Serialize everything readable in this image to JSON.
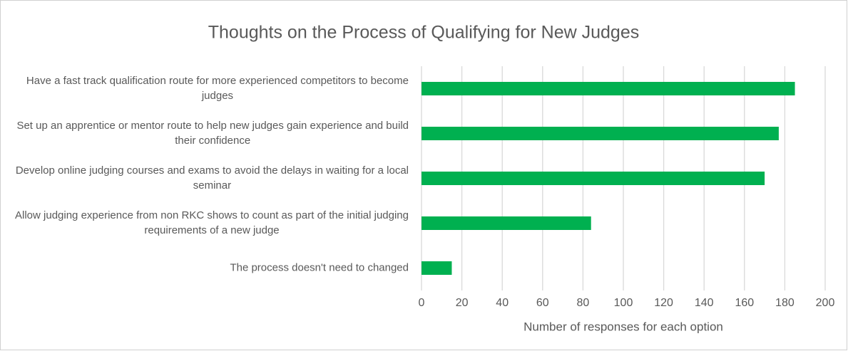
{
  "chart_data": {
    "type": "bar",
    "orientation": "horizontal",
    "title": "Thoughts on the Process of Qualifying for New Judges",
    "x_label": "Number of responses for each option",
    "categories": [
      "Have a fast track qualification route for more experienced competitors to become judges",
      "Set up an apprentice or mentor route to help new judges gain experience and build their confidence",
      "Develop online judging courses and exams to avoid the delays in waiting for a local seminar",
      "Allow judging experience from non RKC shows to count as part of the initial judging requirements of a new judge",
      "The process doesn't need to changed"
    ],
    "values": [
      185,
      177,
      170,
      84,
      15
    ],
    "color": "#00b050",
    "xlim": [
      0,
      200
    ],
    "xticks": [
      0,
      20,
      40,
      60,
      80,
      100,
      120,
      140,
      160,
      180,
      200
    ],
    "grid": true
  }
}
